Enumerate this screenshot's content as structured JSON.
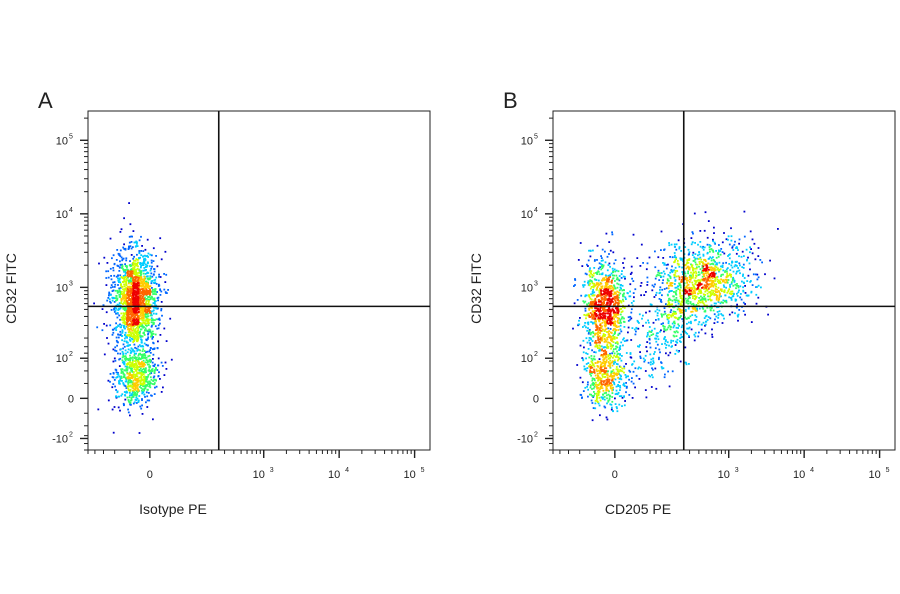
{
  "chart_data": [
    {
      "type": "scatter",
      "panel": "A",
      "title": "",
      "xlabel": "Isotype PE",
      "ylabel": "CD32 FITC",
      "scale": "biexponential",
      "xlim": [
        -200,
        160000
      ],
      "ylim": [
        -150,
        250000
      ],
      "x_ticks": [
        {
          "value": 0,
          "base": "0",
          "exp": ""
        },
        {
          "value": 1000,
          "base": "10",
          "exp": "3"
        },
        {
          "value": 10000,
          "base": "10",
          "exp": "4"
        },
        {
          "value": 100000,
          "base": "10",
          "exp": "5"
        }
      ],
      "y_ticks": [
        {
          "value": -100,
          "base": "-10",
          "exp": "2"
        },
        {
          "value": 0,
          "base": "0",
          "exp": ""
        },
        {
          "value": 100,
          "base": "10",
          "exp": "2"
        },
        {
          "value": 1000,
          "base": "10",
          "exp": "3"
        },
        {
          "value": 10000,
          "base": "10",
          "exp": "4"
        },
        {
          "value": 100000,
          "base": "10",
          "exp": "5"
        }
      ],
      "quadrant_gate": {
        "x": 250,
        "y": 550
      },
      "populations": [
        {
          "name": "",
          "x_center": -30,
          "y_center": 700,
          "count": 1700
        },
        {
          "name": "",
          "x_center": -30,
          "y_center": 50,
          "count": 650
        }
      ],
      "colormap": [
        "#0000cc",
        "#0066ff",
        "#00ccff",
        "#33ff66",
        "#ccff00",
        "#ffcc00",
        "#ff6600",
        "#ee0000"
      ]
    },
    {
      "type": "scatter",
      "panel": "B",
      "title": "",
      "xlabel": "CD205 PE",
      "ylabel": "CD32 FITC",
      "scale": "biexponential",
      "xlim": [
        -200,
        160000
      ],
      "ylim": [
        -150,
        250000
      ],
      "x_ticks": [
        {
          "value": 0,
          "base": "0",
          "exp": ""
        },
        {
          "value": 1000,
          "base": "10",
          "exp": "3"
        },
        {
          "value": 10000,
          "base": "10",
          "exp": "4"
        },
        {
          "value": 100000,
          "base": "10",
          "exp": "5"
        }
      ],
      "y_ticks": [
        {
          "value": -100,
          "base": "-10",
          "exp": "2"
        },
        {
          "value": 0,
          "base": "0",
          "exp": ""
        },
        {
          "value": 100,
          "base": "10",
          "exp": "2"
        },
        {
          "value": 1000,
          "base": "10",
          "exp": "3"
        },
        {
          "value": 10000,
          "base": "10",
          "exp": "4"
        },
        {
          "value": 100000,
          "base": "10",
          "exp": "5"
        }
      ],
      "quadrant_gate": {
        "x": 250,
        "y": 550
      },
      "populations": [
        {
          "name": "",
          "x_center": -20,
          "y_center": 550,
          "count": 1000
        },
        {
          "name": "",
          "x_center": -20,
          "y_center": 50,
          "count": 450
        },
        {
          "name": "",
          "x_center": 450,
          "y_center": 1300,
          "count": 900
        },
        {
          "name": "",
          "x_center": 200,
          "y_center": 400,
          "count": 500
        }
      ],
      "colormap": [
        "#0000cc",
        "#0066ff",
        "#00ccff",
        "#33ff66",
        "#ccff00",
        "#ffcc00",
        "#ff6600",
        "#ee0000"
      ]
    }
  ]
}
